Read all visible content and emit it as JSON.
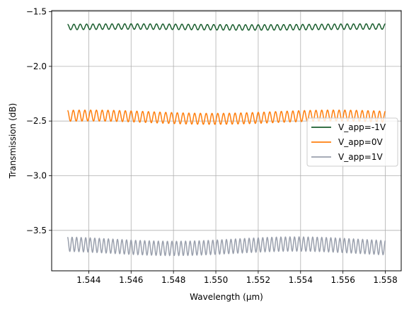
{
  "chart_data": {
    "type": "line",
    "title": "",
    "xlabel": "Wavelength (µm)",
    "ylabel": "Transmission (dB)",
    "xlim": [
      1.54225,
      1.55875
    ],
    "ylim": [
      -3.87,
      -1.49
    ],
    "xticks": [
      1.544,
      1.546,
      1.548,
      1.55,
      1.552,
      1.554,
      1.556,
      1.558
    ],
    "xtick_labels": [
      "1.544",
      "1.546",
      "1.548",
      "1.550",
      "1.552",
      "1.554",
      "1.556",
      "1.558"
    ],
    "yticks": [
      -1.5,
      -2.0,
      -2.5,
      -3.0,
      -3.5
    ],
    "ytick_labels": [
      "−1.5",
      "−2.0",
      "−2.5",
      "−3.0",
      "−3.5"
    ],
    "grid": true,
    "legend_position": "center-right",
    "x_range": [
      1.543,
      1.558
    ],
    "series": [
      {
        "name": "V_app=-1V",
        "color": "#1a5e2e",
        "mean": -1.64,
        "amplitude": 0.025,
        "periods": 50,
        "envelope": 0.004
      },
      {
        "name": "V_app=0V",
        "color": "#ff7f0e",
        "mean": -2.465,
        "amplitude": 0.05,
        "periods": 55,
        "envelope": 0.015
      },
      {
        "name": "V_app=1V",
        "color": "#9aa0ad",
        "mean": -3.645,
        "amplitude": 0.065,
        "periods": 70,
        "envelope": 0.02
      }
    ]
  }
}
